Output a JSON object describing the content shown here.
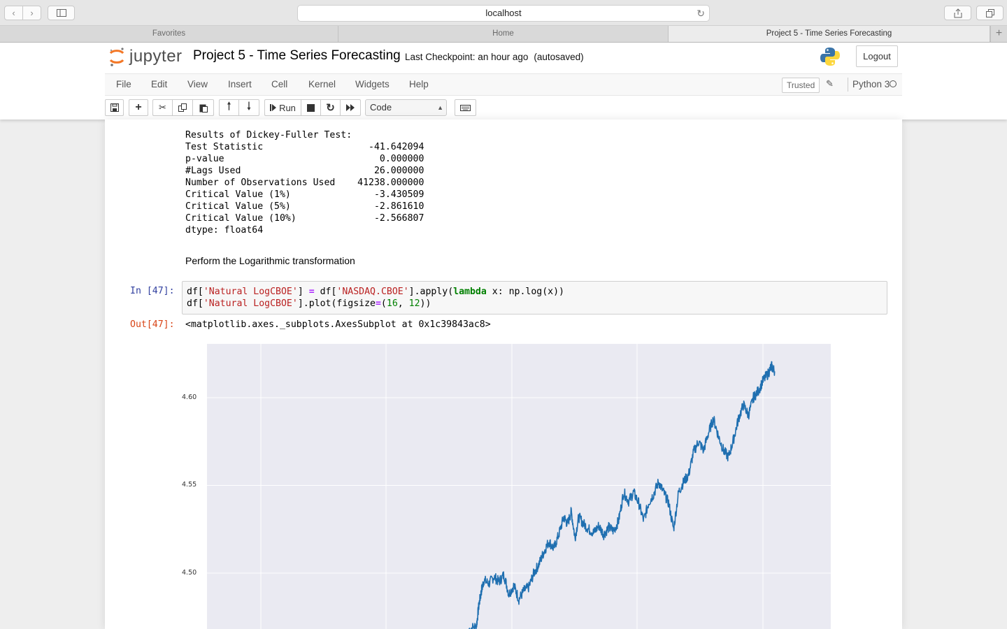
{
  "browser": {
    "url": "localhost",
    "tabs": [
      "Favorites",
      "Home",
      "Project 5 - Time Series Forecasting"
    ]
  },
  "header": {
    "logo_text": "jupyter",
    "title": "Project 5 - Time Series Forecasting",
    "checkpoint": "Last Checkpoint: an hour ago",
    "autosave": "(autosaved)",
    "logout": "Logout"
  },
  "menu": {
    "items": [
      "File",
      "Edit",
      "View",
      "Insert",
      "Cell",
      "Kernel",
      "Widgets",
      "Help"
    ],
    "trusted": "Trusted",
    "kernel": "Python 3"
  },
  "toolbar": {
    "run_label": "Run",
    "cell_type": "Code"
  },
  "notebook": {
    "dickey_fuller_output": [
      "Results of Dickey-Fuller Test:",
      "Test Statistic                   -41.642094",
      "p-value                            0.000000",
      "#Lags Used                        26.000000",
      "Number of Observations Used    41238.000000",
      "Critical Value (1%)               -3.430509",
      "Critical Value (5%)               -2.861610",
      "Critical Value (10%)              -2.566807",
      "dtype: float64"
    ],
    "markdown_text": "Perform the Logarithmic transformation",
    "in_prompt": "In [47]:",
    "out_prompt": "Out[47]:",
    "output_repr": "<matplotlib.axes._subplots.AxesSubplot at 0x1c39843ac8>"
  },
  "chart_data": {
    "type": "line",
    "series_color": "#1f6fb0",
    "background_color": "#eaeaf2",
    "grid": true,
    "yticks": [
      "4.60",
      "4.55",
      "4.50"
    ],
    "ytick_values": [
      4.6,
      4.55,
      4.5
    ],
    "ylim_visible": [
      4.468,
      4.63
    ],
    "x_fraction_range": [
      0,
      1
    ],
    "series": [
      {
        "values_sampled": [
          [
            0.42,
            4.468
          ],
          [
            0.432,
            4.47
          ],
          [
            0.436,
            4.482
          ],
          [
            0.44,
            4.49
          ],
          [
            0.444,
            4.496
          ],
          [
            0.452,
            4.494
          ],
          [
            0.46,
            4.498
          ],
          [
            0.468,
            4.495
          ],
          [
            0.476,
            4.499
          ],
          [
            0.484,
            4.488
          ],
          [
            0.492,
            4.493
          ],
          [
            0.5,
            4.485
          ],
          [
            0.508,
            4.49
          ],
          [
            0.516,
            4.492
          ],
          [
            0.524,
            4.5
          ],
          [
            0.532,
            4.505
          ],
          [
            0.54,
            4.512
          ],
          [
            0.548,
            4.518
          ],
          [
            0.556,
            4.514
          ],
          [
            0.564,
            4.522
          ],
          [
            0.572,
            4.532
          ],
          [
            0.578,
            4.528
          ],
          [
            0.584,
            4.535
          ],
          [
            0.59,
            4.52
          ],
          [
            0.596,
            4.532
          ],
          [
            0.604,
            4.528
          ],
          [
            0.612,
            4.525
          ],
          [
            0.62,
            4.523
          ],
          [
            0.628,
            4.527
          ],
          [
            0.636,
            4.522
          ],
          [
            0.644,
            4.526
          ],
          [
            0.652,
            4.524
          ],
          [
            0.66,
            4.53
          ],
          [
            0.668,
            4.546
          ],
          [
            0.676,
            4.541
          ],
          [
            0.684,
            4.546
          ],
          [
            0.692,
            4.54
          ],
          [
            0.7,
            4.53
          ],
          [
            0.708,
            4.54
          ],
          [
            0.716,
            4.545
          ],
          [
            0.724,
            4.552
          ],
          [
            0.732,
            4.546
          ],
          [
            0.74,
            4.54
          ],
          [
            0.748,
            4.525
          ],
          [
            0.756,
            4.546
          ],
          [
            0.764,
            4.552
          ],
          [
            0.772,
            4.556
          ],
          [
            0.78,
            4.569
          ],
          [
            0.788,
            4.575
          ],
          [
            0.796,
            4.57
          ],
          [
            0.804,
            4.58
          ],
          [
            0.812,
            4.588
          ],
          [
            0.82,
            4.578
          ],
          [
            0.828,
            4.57
          ],
          [
            0.836,
            4.566
          ],
          [
            0.844,
            4.576
          ],
          [
            0.852,
            4.588
          ],
          [
            0.86,
            4.596
          ],
          [
            0.868,
            4.59
          ],
          [
            0.876,
            4.6
          ],
          [
            0.884,
            4.604
          ],
          [
            0.892,
            4.61
          ],
          [
            0.9,
            4.614
          ],
          [
            0.905,
            4.618
          ],
          [
            0.91,
            4.615
          ]
        ]
      }
    ]
  }
}
